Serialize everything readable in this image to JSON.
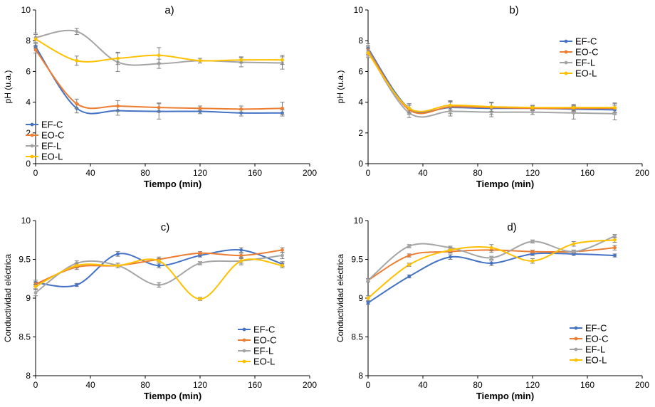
{
  "colors": {
    "EF-C": "#4472c4",
    "EO-C": "#ed7d31",
    "EF-L": "#a5a5a5",
    "EO-L": "#ffc000",
    "errorbar": "#7f7f7f"
  },
  "chart_data": [
    {
      "type": "line",
      "title": "a)",
      "xlabel": "Tiempo (min)",
      "ylabel": "pH (u.a.)",
      "xlim": [
        0,
        200
      ],
      "ylim": [
        0,
        10
      ],
      "xticks": [
        "0",
        "40",
        "80",
        "120",
        "160",
        "200"
      ],
      "yticks": [
        "0",
        "2",
        "4",
        "6",
        "8",
        "10"
      ],
      "legend_position": "bottom-left",
      "x": [
        0,
        30,
        60,
        90,
        120,
        150,
        180
      ],
      "series": [
        {
          "name": "EF-C",
          "values": [
            7.6,
            3.6,
            3.45,
            3.4,
            3.4,
            3.3,
            3.3
          ],
          "errors": [
            0.1,
            0.3,
            0.3,
            0.5,
            0.15,
            0.2,
            0.2
          ]
        },
        {
          "name": "EO-C",
          "values": [
            7.4,
            3.9,
            3.75,
            3.65,
            3.6,
            3.55,
            3.6
          ],
          "errors": [
            0.2,
            0.3,
            0.35,
            0.3,
            0.15,
            0.2,
            0.4
          ]
        },
        {
          "name": "EF-L",
          "values": [
            8.2,
            8.6,
            6.6,
            6.5,
            6.7,
            6.6,
            6.55
          ],
          "errors": [
            0.3,
            0.2,
            0.6,
            0.3,
            0.15,
            0.3,
            0.4
          ]
        },
        {
          "name": "EO-L",
          "values": [
            8.1,
            6.7,
            6.85,
            7.05,
            6.7,
            6.75,
            6.75
          ],
          "errors": [
            0.3,
            0.3,
            0.4,
            0.5,
            0.15,
            0.2,
            0.3
          ]
        }
      ]
    },
    {
      "type": "line",
      "title": "b)",
      "xlabel": "Tiempo (min)",
      "ylabel": "pH (u.a.)",
      "xlim": [
        0,
        200
      ],
      "ylim": [
        0,
        10
      ],
      "xticks": [
        "0",
        "40",
        "80",
        "120",
        "160",
        "200"
      ],
      "yticks": [
        "0",
        "2",
        "4",
        "6",
        "8",
        "10"
      ],
      "legend_position": "top-right",
      "x": [
        0,
        30,
        60,
        90,
        120,
        150,
        180
      ],
      "series": [
        {
          "name": "EF-C",
          "values": [
            7.5,
            3.6,
            3.65,
            3.6,
            3.6,
            3.55,
            3.5
          ],
          "errors": [
            0.3,
            0.3,
            0.4,
            0.4,
            0.15,
            0.2,
            0.3
          ]
        },
        {
          "name": "EO-C",
          "values": [
            7.4,
            3.5,
            3.7,
            3.65,
            3.6,
            3.6,
            3.6
          ],
          "errors": [
            0.3,
            0.3,
            0.3,
            0.3,
            0.15,
            0.2,
            0.3
          ]
        },
        {
          "name": "EF-L",
          "values": [
            7.3,
            3.3,
            3.4,
            3.35,
            3.35,
            3.3,
            3.25
          ],
          "errors": [
            0.3,
            0.3,
            0.3,
            0.3,
            0.15,
            0.4,
            0.4
          ]
        },
        {
          "name": "EO-L",
          "values": [
            7.2,
            3.6,
            3.8,
            3.7,
            3.65,
            3.65,
            3.65
          ],
          "errors": [
            0.3,
            0.3,
            0.3,
            0.3,
            0.15,
            0.2,
            0.3
          ]
        }
      ]
    },
    {
      "type": "line",
      "title": "c)",
      "xlabel": "Tiempo (min)",
      "ylabel": "Conductividad eléctrica",
      "xlim": [
        0,
        200
      ],
      "ylim": [
        8,
        10
      ],
      "xticks": [
        "0",
        "40",
        "80",
        "120",
        "160",
        "200"
      ],
      "yticks": [
        "8",
        "8.5",
        "9",
        "9.5",
        "10"
      ],
      "legend_position": "bottom-right",
      "x": [
        0,
        30,
        60,
        90,
        120,
        150,
        180
      ],
      "series": [
        {
          "name": "EF-C",
          "values": [
            9.2,
            9.17,
            9.57,
            9.42,
            9.55,
            9.62,
            9.44
          ],
          "errors": [
            0.03,
            0.02,
            0.03,
            0.03,
            0.02,
            0.03,
            0.03
          ]
        },
        {
          "name": "EO-C",
          "values": [
            9.18,
            9.4,
            9.42,
            9.5,
            9.58,
            9.55,
            9.62
          ],
          "errors": [
            0.03,
            0.03,
            0.03,
            0.03,
            0.02,
            0.03,
            0.03
          ]
        },
        {
          "name": "EF-L",
          "values": [
            9.07,
            9.45,
            9.42,
            9.17,
            9.45,
            9.48,
            9.55
          ],
          "errors": [
            0.04,
            0.03,
            0.03,
            0.03,
            0.02,
            0.03,
            0.04
          ]
        },
        {
          "name": "EO-L",
          "values": [
            9.15,
            9.42,
            9.42,
            9.48,
            8.99,
            9.48,
            9.42
          ],
          "errors": [
            0.03,
            0.03,
            0.03,
            0.03,
            0.02,
            0.05,
            0.03
          ]
        }
      ]
    },
    {
      "type": "line",
      "title": "d)",
      "xlabel": "Tiempo (min)",
      "ylabel": "Conductividad eléctrica",
      "xlim": [
        0,
        200
      ],
      "ylim": [
        8,
        10
      ],
      "xticks": [
        "0",
        "40",
        "80",
        "120",
        "160",
        "200"
      ],
      "yticks": [
        "8",
        "8.5",
        "9",
        "9.5",
        "10"
      ],
      "legend_position": "bottom-right",
      "x": [
        0,
        30,
        60,
        90,
        120,
        150,
        180
      ],
      "series": [
        {
          "name": "EF-C",
          "values": [
            8.94,
            9.28,
            9.53,
            9.45,
            9.57,
            9.57,
            9.55
          ],
          "errors": [
            0.02,
            0.02,
            0.03,
            0.03,
            0.02,
            0.02,
            0.02
          ]
        },
        {
          "name": "EO-C",
          "values": [
            9.23,
            9.55,
            9.6,
            9.62,
            9.6,
            9.6,
            9.65
          ],
          "errors": [
            0.02,
            0.02,
            0.02,
            0.03,
            0.02,
            0.02,
            0.03
          ]
        },
        {
          "name": "EF-L",
          "values": [
            9.23,
            9.67,
            9.65,
            9.52,
            9.73,
            9.6,
            9.8
          ],
          "errors": [
            0.02,
            0.02,
            0.02,
            0.02,
            0.02,
            0.02,
            0.02
          ]
        },
        {
          "name": "EO-L",
          "values": [
            9.0,
            9.43,
            9.62,
            9.65,
            9.48,
            9.7,
            9.75
          ],
          "errors": [
            0.03,
            0.02,
            0.03,
            0.04,
            0.03,
            0.03,
            0.03
          ]
        }
      ]
    }
  ]
}
